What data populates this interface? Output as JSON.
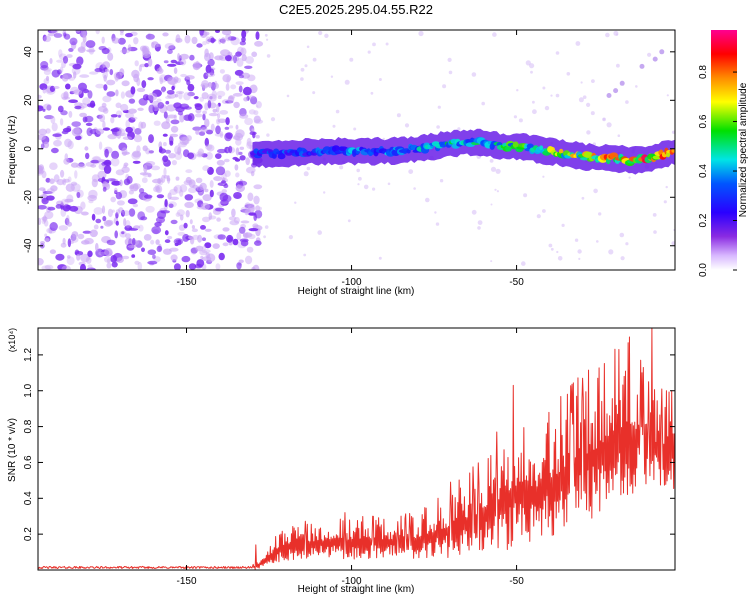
{
  "title": "C2E5.2025.295.04.55.R22",
  "colors": {
    "snr_line": "#e8302a",
    "ridge_low": "#6a00ff",
    "noise": "#8a2be2"
  },
  "chart_data": [
    {
      "type": "heatmap",
      "title": "C2E5.2025.295.04.55.R22",
      "xlabel": "Height of straight line (km)",
      "ylabel": "Frequency (Hz)",
      "xlim": [
        -195,
        -2
      ],
      "ylim": [
        -50,
        49
      ],
      "xticks": [
        -150,
        -100,
        -50
      ],
      "yticks": [
        -40,
        -20,
        0,
        20,
        40
      ],
      "colorbar": {
        "label": "Normalized spectral amplitude",
        "range": [
          0.0,
          0.97
        ],
        "ticks": [
          0.0,
          0.2,
          0.4,
          0.6,
          0.8
        ],
        "colormap": "rainbow (violet-blue-cyan-green-yellow-red-magenta)"
      },
      "regions": [
        {
          "name": "broadband noise",
          "x_range": [
            -195,
            -130
          ],
          "freq_range": [
            -50,
            49
          ],
          "amplitude": 0.1
        },
        {
          "name": "signal ridge",
          "x_range": [
            -130,
            -2
          ],
          "amplitude_range": [
            0.05,
            0.95
          ]
        }
      ],
      "ridge": {
        "x": [
          -130,
          -120,
          -110,
          -100,
          -90,
          -80,
          -70,
          -62,
          -55,
          -50,
          -45,
          -40,
          -35,
          -30,
          -25,
          -20,
          -15,
          -10,
          -5,
          -2
        ],
        "freq": [
          -2,
          -2,
          -1,
          -1,
          -1,
          0,
          2,
          3,
          1,
          1,
          0,
          -1,
          -2,
          -3,
          -4,
          -4,
          -5,
          -4,
          -2,
          -1
        ],
        "amplitude": [
          0.3,
          0.35,
          0.35,
          0.4,
          0.4,
          0.45,
          0.5,
          0.5,
          0.55,
          0.6,
          0.6,
          0.65,
          0.7,
          0.7,
          0.75,
          0.8,
          0.85,
          0.85,
          0.9,
          0.95
        ]
      }
    },
    {
      "type": "line",
      "xlabel": "Height of straight line (km)",
      "ylabel": "SNR (10 * v/v)",
      "y_multiplier": "(x10⁴)",
      "xlim": [
        -195,
        -2
      ],
      "ylim": [
        0,
        1.35
      ],
      "xticks": [
        -150,
        -100,
        -50
      ],
      "yticks": [
        0.2,
        0.4,
        0.6,
        0.8,
        1.0,
        1.2
      ],
      "envelope": {
        "x": [
          -195,
          -130,
          -128,
          -125,
          -120,
          -110,
          -100,
          -90,
          -80,
          -70,
          -65,
          -60,
          -55,
          -50,
          -45,
          -40,
          -35,
          -30,
          -25,
          -20,
          -15,
          -10,
          -5,
          -2
        ],
        "ymin": [
          0.0,
          0.0,
          0.01,
          0.03,
          0.05,
          0.06,
          0.06,
          0.06,
          0.06,
          0.07,
          0.08,
          0.08,
          0.1,
          0.12,
          0.15,
          0.18,
          0.22,
          0.25,
          0.3,
          0.35,
          0.4,
          0.45,
          0.45,
          0.45
        ],
        "ymax": [
          0.03,
          0.03,
          0.06,
          0.14,
          0.26,
          0.28,
          0.3,
          0.3,
          0.32,
          0.45,
          0.55,
          0.62,
          0.75,
          0.88,
          0.8,
          0.9,
          1.0,
          1.1,
          1.15,
          1.3,
          1.3,
          1.05,
          1.0,
          1.0
        ]
      },
      "peaks": [
        {
          "x": -129,
          "y": 0.14
        },
        {
          "x": -102,
          "y": 0.32
        },
        {
          "x": -86,
          "y": 0.27
        },
        {
          "x": -70,
          "y": 0.49
        },
        {
          "x": -56,
          "y": 0.77
        },
        {
          "x": -51,
          "y": 1.03
        },
        {
          "x": -30,
          "y": 1.07
        },
        {
          "x": -19,
          "y": 1.23
        },
        {
          "x": -9,
          "y": 1.35
        },
        {
          "x": -12,
          "y": 1.1
        },
        {
          "x": -3,
          "y": 1.0
        }
      ]
    }
  ]
}
